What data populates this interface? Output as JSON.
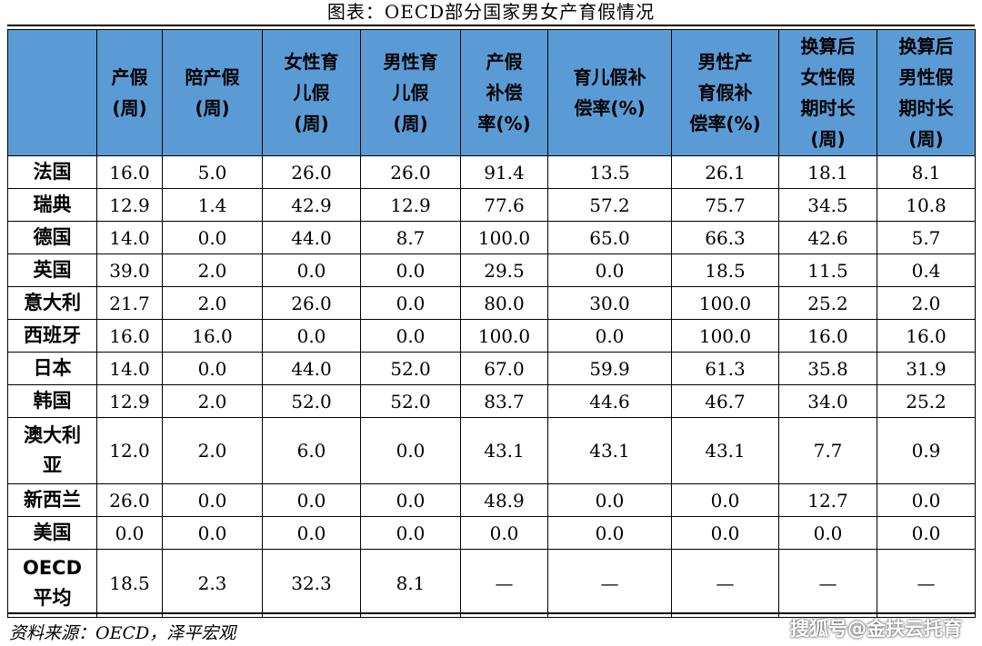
{
  "title": "图表：OECD部分国家男女产育假情况",
  "headers": [
    "",
    "产假\n(周)",
    "陪产假\n(周)",
    "女性育\n儿假\n(周)",
    "男性育\n儿假\n(周)",
    "产假\n补偿\n率(%)",
    "育儿假补\n偿率(%)",
    "男性产\n育假补\n偿率(%)",
    "换算后\n女性假\n期时长\n(周)",
    "换算后\n男性假\n期时长\n(周)"
  ],
  "rows": [
    {
      "country": "法国",
      "values": [
        "16.0",
        "5.0",
        "26.0",
        "26.0",
        "91.4",
        "13.5",
        "26.1",
        "18.1",
        "8.1"
      ]
    },
    {
      "country": "瑞典",
      "values": [
        "12.9",
        "1.4",
        "42.9",
        "12.9",
        "77.6",
        "57.2",
        "75.7",
        "34.5",
        "10.8"
      ]
    },
    {
      "country": "德国",
      "values": [
        "14.0",
        "0.0",
        "44.0",
        "8.7",
        "100.0",
        "65.0",
        "66.3",
        "42.6",
        "5.7"
      ]
    },
    {
      "country": "英国",
      "values": [
        "39.0",
        "2.0",
        "0.0",
        "0.0",
        "29.5",
        "0.0",
        "18.5",
        "11.5",
        "0.4"
      ]
    },
    {
      "country": "意大利",
      "values": [
        "21.7",
        "2.0",
        "26.0",
        "0.0",
        "80.0",
        "30.0",
        "100.0",
        "25.2",
        "2.0"
      ]
    },
    {
      "country": "西班牙",
      "values": [
        "16.0",
        "16.0",
        "0.0",
        "0.0",
        "100.0",
        "0.0",
        "100.0",
        "16.0",
        "16.0"
      ]
    },
    {
      "country": "日本",
      "values": [
        "14.0",
        "0.0",
        "44.0",
        "52.0",
        "67.0",
        "59.9",
        "61.3",
        "35.8",
        "31.9"
      ]
    },
    {
      "country": "韩国",
      "values": [
        "12.9",
        "2.0",
        "52.0",
        "52.0",
        "83.7",
        "44.6",
        "46.7",
        "34.0",
        "25.2"
      ]
    },
    {
      "country": "澳大利\n亚",
      "values": [
        "12.0",
        "2.0",
        "6.0",
        "0.0",
        "43.1",
        "43.1",
        "43.1",
        "7.7",
        "0.9"
      ]
    },
    {
      "country": "新西兰",
      "values": [
        "26.0",
        "0.0",
        "0.0",
        "0.0",
        "48.9",
        "0.0",
        "0.0",
        "12.7",
        "0.0"
      ]
    },
    {
      "country": "美国",
      "values": [
        "0.0",
        "0.0",
        "0.0",
        "0.0",
        "0.0",
        "0.0",
        "0.0",
        "0.0",
        "0.0"
      ]
    },
    {
      "country": "OECD\n平均",
      "values": [
        "18.5",
        "2.3",
        "32.3",
        "8.1",
        "—",
        "—",
        "—",
        "—",
        "—"
      ]
    }
  ],
  "source": "资料来源：OECD，泽平宏观",
  "watermark": "搜狐号@金扶云托育",
  "colors": {
    "header_bg": "#5b9bd5"
  }
}
